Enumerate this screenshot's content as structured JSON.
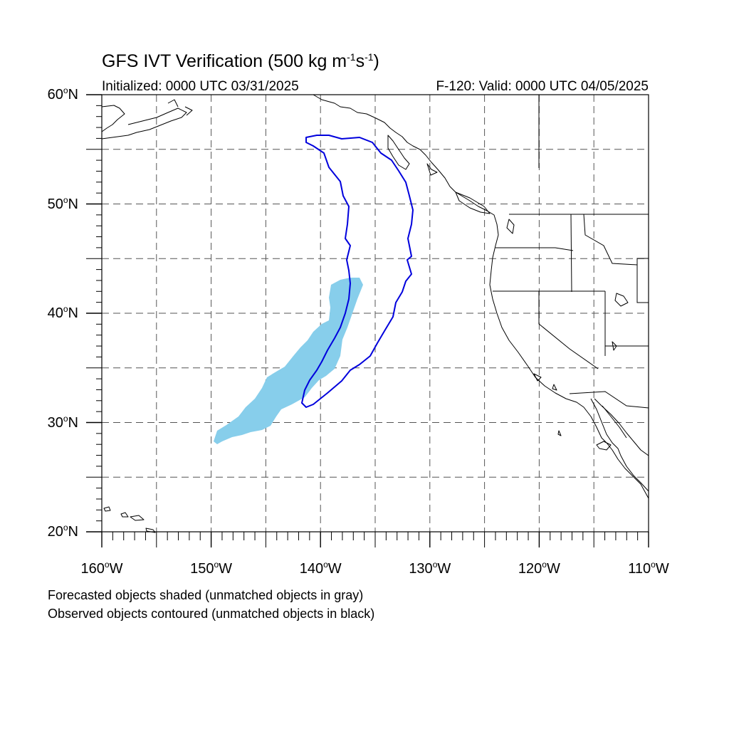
{
  "title": {
    "prefix": "GFS IVT Verification (500 kg m",
    "exp1": "-1",
    "middle": "s",
    "exp2": "-1",
    "suffix": ")"
  },
  "subtitle_left": "Initialized: 0000 UTC 03/31/2025",
  "subtitle_right": "F-120: Valid: 0000 UTC 04/05/2025",
  "map": {
    "lon_range": [
      -160,
      -110
    ],
    "lat_range": [
      20,
      60
    ],
    "lat_labels": [
      {
        "num": "60",
        "suf": "N"
      },
      {
        "num": "50",
        "suf": "N"
      },
      {
        "num": "40",
        "suf": "N"
      },
      {
        "num": "30",
        "suf": "N"
      },
      {
        "num": "20",
        "suf": "N"
      }
    ],
    "lon_labels": [
      {
        "num": "160",
        "suf": "W"
      },
      {
        "num": "150",
        "suf": "W"
      },
      {
        "num": "140",
        "suf": "W"
      },
      {
        "num": "130",
        "suf": "W"
      },
      {
        "num": "120",
        "suf": "W"
      },
      {
        "num": "110",
        "suf": "W"
      }
    ],
    "gridline_spacing_deg": 5,
    "forecast_fill_color": "#87ceeb",
    "observed_contour_color": "#0000dd",
    "coast_color": "#000000"
  },
  "legend": {
    "line1": "Forecasted objects shaded (unmatched objects in gray)",
    "line2": "Observed objects contoured (unmatched objects in black)"
  }
}
